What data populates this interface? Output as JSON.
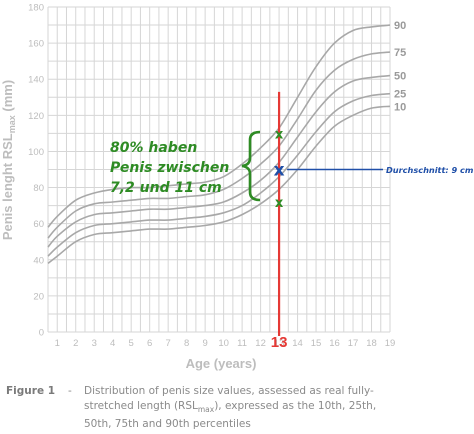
{
  "chart_data": {
    "type": "line",
    "ylabel": "Penis lenght RSL",
    "ylabel_sub": "max",
    "ylabel_unit": " (mm)",
    "xlabel": "Age (years)",
    "xlim": [
      0.5,
      19
    ],
    "ylim": [
      0,
      180
    ],
    "x_ticks": [
      1,
      2,
      3,
      4,
      5,
      6,
      7,
      8,
      9,
      10,
      11,
      12,
      13,
      14,
      15,
      16,
      17,
      18,
      19
    ],
    "y_ticks": [
      0,
      20,
      40,
      60,
      80,
      100,
      120,
      140,
      160,
      180
    ],
    "grid": true,
    "x": [
      0.5,
      1,
      2,
      3,
      4,
      5,
      6,
      7,
      8,
      9,
      10,
      11,
      12,
      13,
      14,
      15,
      16,
      17,
      18,
      19
    ],
    "series": [
      {
        "name": "90",
        "values": [
          58,
          64,
          73,
          77,
          79,
          80,
          80,
          81,
          82,
          83,
          86,
          93,
          102,
          113,
          130,
          147,
          160,
          167,
          169,
          170
        ]
      },
      {
        "name": "75",
        "values": [
          52,
          58,
          67,
          71,
          72,
          73,
          74,
          74,
          75,
          76,
          79,
          85,
          93,
          103,
          118,
          134,
          145,
          151,
          154,
          155
        ]
      },
      {
        "name": "50",
        "values": [
          47,
          53,
          61,
          65,
          66,
          67,
          68,
          68,
          69,
          70,
          72,
          77,
          84,
          94,
          108,
          122,
          133,
          139,
          141,
          142
        ]
      },
      {
        "name": "25",
        "values": [
          42,
          47,
          55,
          59,
          60,
          61,
          62,
          62,
          63,
          64,
          66,
          70,
          77,
          86,
          98,
          111,
          122,
          128,
          131,
          132
        ]
      },
      {
        "name": "10",
        "values": [
          38,
          42,
          50,
          54,
          55,
          56,
          57,
          57,
          58,
          59,
          61,
          65,
          71,
          79,
          90,
          103,
          114,
          120,
          124,
          125
        ]
      }
    ],
    "highlight_age": {
      "value": 13,
      "label": "13"
    },
    "markers": [
      {
        "name": "upper",
        "x": 13,
        "y": 110,
        "label": "x"
      },
      {
        "name": "mean",
        "x": 13,
        "y": 90,
        "label": "x"
      },
      {
        "name": "lower",
        "x": 13,
        "y": 72,
        "label": "x"
      }
    ],
    "mean_label": "Durchschnitt: 9 cm",
    "annotation_lines": [
      "80% haben",
      "Penis zwischen",
      "7,2 und 11 cm"
    ],
    "colors": {
      "curve": "#a8a8a8",
      "grid": "#d6d6d6",
      "axis_text": "#bdbdbd",
      "percentile_label": "#9a9a9a",
      "highlight": "#e53935",
      "marker": "#2e8b24",
      "mean_marker": "#1f4fa8",
      "annotation": "#2e8b24"
    }
  },
  "caption": {
    "label": "Figure 1",
    "dash": "-",
    "line1": "Distribution of penis size values, assessed as real fully-",
    "line2_pre": "stretched length (RSL",
    "line2_sub": "max",
    "line2_post": "), expressed as the 10th, 25th,",
    "line3": "50th, 75th and 90th percentiles"
  }
}
